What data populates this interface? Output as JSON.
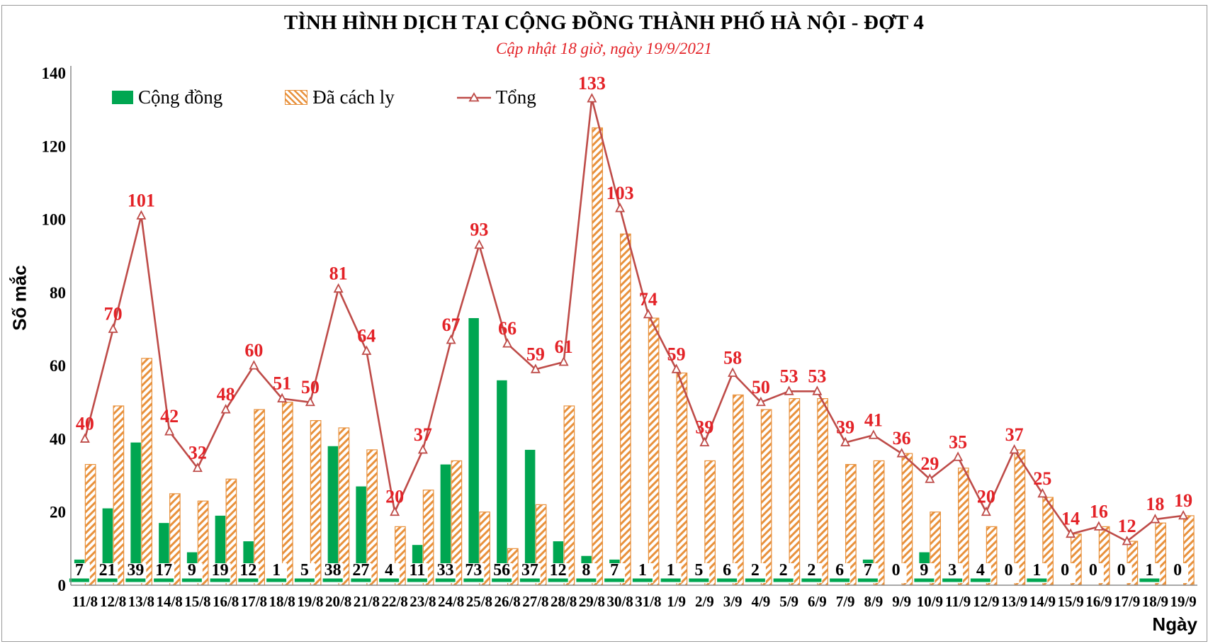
{
  "chart_data": {
    "type": "bar+line combo",
    "title": "TÌNH HÌNH DỊCH TẠI CỘNG ĐỒNG THÀNH PHỐ HÀ NỘI - ĐỢT 4",
    "subtitle": "Cập nhật 18 giờ, ngày 19/9/2021",
    "xlabel": "Ngày",
    "ylabel": "Số mắc",
    "ylim": [
      0,
      140
    ],
    "ytick_step": 20,
    "yticks": [
      0,
      20,
      40,
      60,
      80,
      100,
      120,
      140
    ],
    "grid": false,
    "legend_position": "inside-top-left",
    "categories": [
      "11/8",
      "12/8",
      "13/8",
      "14/8",
      "15/8",
      "16/8",
      "17/8",
      "18/8",
      "19/8",
      "20/8",
      "21/8",
      "22/8",
      "23/8",
      "24/8",
      "25/8",
      "26/8",
      "27/8",
      "28/8",
      "29/8",
      "30/8",
      "31/8",
      "1/9",
      "2/9",
      "3/9",
      "4/9",
      "5/9",
      "6/9",
      "7/9",
      "8/9",
      "9/9",
      "10/9",
      "11/9",
      "12/9",
      "13/9",
      "14/9",
      "15/9",
      "16/9",
      "17/9",
      "18/9",
      "19/9"
    ],
    "series": [
      {
        "name": "Cộng đồng",
        "type": "bar",
        "style": "solid",
        "color": "#00A651",
        "values": [
          7,
          21,
          39,
          17,
          9,
          19,
          12,
          1,
          5,
          38,
          27,
          4,
          11,
          33,
          73,
          56,
          37,
          12,
          8,
          7,
          1,
          1,
          5,
          6,
          2,
          2,
          2,
          6,
          7,
          0,
          9,
          3,
          4,
          0,
          1,
          0,
          0,
          0,
          1,
          0
        ]
      },
      {
        "name": "Đã cách ly",
        "type": "bar",
        "style": "hatched",
        "color": "#E8913C",
        "values": [
          33,
          49,
          62,
          25,
          23,
          29,
          48,
          50,
          45,
          43,
          37,
          16,
          26,
          34,
          20,
          10,
          22,
          49,
          125,
          96,
          73,
          58,
          34,
          52,
          48,
          51,
          51,
          33,
          34,
          36,
          20,
          32,
          16,
          37,
          24,
          14,
          16,
          12,
          17,
          19
        ]
      },
      {
        "name": "Tổng",
        "type": "line",
        "marker": "open-triangle",
        "color": "#BE4B48",
        "values": [
          40,
          70,
          101,
          42,
          32,
          48,
          60,
          51,
          50,
          81,
          64,
          20,
          37,
          67,
          93,
          66,
          59,
          61,
          133,
          103,
          74,
          59,
          39,
          58,
          50,
          53,
          53,
          39,
          41,
          36,
          29,
          35,
          20,
          37,
          25,
          14,
          16,
          12,
          18,
          19
        ]
      }
    ],
    "colors": {
      "cong_dong_green": "#00A651",
      "da_cach_ly_orange": "#E8913C",
      "tong_line": "#BE4B48",
      "value_label_red": "#E32227",
      "subtitle_red": "#E32227",
      "axis_gray": "#8C8C8C",
      "text_black": "#000000"
    }
  }
}
